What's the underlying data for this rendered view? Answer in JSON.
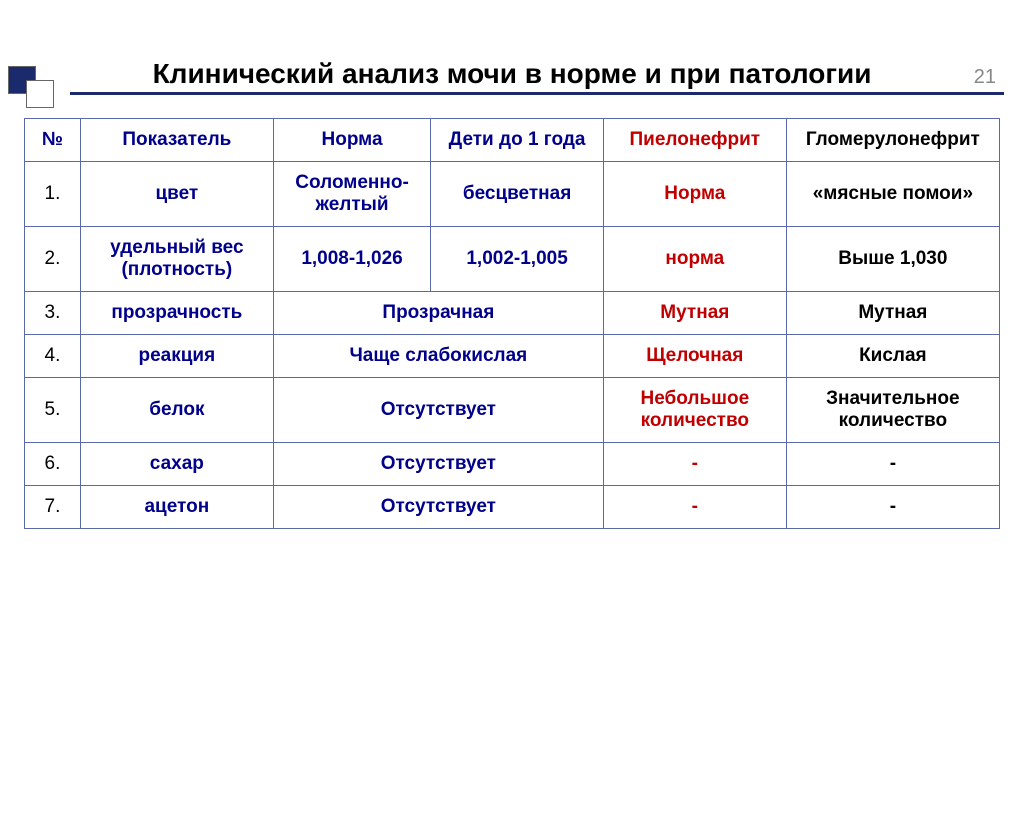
{
  "page_number": "21",
  "title": "Клинический анализ мочи в норме и при патологии",
  "colors": {
    "accent_navy": "#00008b",
    "accent_red": "#c00000",
    "border": "#5a6aa8",
    "text_black": "#000000",
    "text_gray": "#888888",
    "divider": "#1a2a6c",
    "background": "#ffffff"
  },
  "table": {
    "columns": [
      {
        "label": "№",
        "style": "navy"
      },
      {
        "label": "Показатель",
        "style": "navy"
      },
      {
        "label": "Норма",
        "style": "navy"
      },
      {
        "label": "Дети до 1 года",
        "style": "navy"
      },
      {
        "label": "Пиелонефрит",
        "style": "red"
      },
      {
        "label": "Гломерулонефрит",
        "style": "black"
      }
    ],
    "rows": [
      {
        "num": "1.",
        "param": "цвет",
        "norm": "Соломенно-желтый",
        "child": "бесцветная",
        "pyelo": "Норма",
        "glom": "«мясные помои»"
      },
      {
        "num": "2.",
        "param": "удельный вес (плотность)",
        "norm": "1,008-1,026",
        "child": "1,002-1,005",
        "pyelo": "норма",
        "glom": "Выше 1,030"
      },
      {
        "num": "3.",
        "param": "прозрачность",
        "norm_merged": "Прозрачная",
        "pyelo": "Мутная",
        "glom": "Мутная"
      },
      {
        "num": "4.",
        "param": "реакция",
        "norm_merged": "Чаще слабокислая",
        "pyelo": "Щелочная",
        "glom": "Кислая"
      },
      {
        "num": "5.",
        "param": "белок",
        "norm_merged": "Отсутствует",
        "pyelo": "Небольшое количество",
        "glom": "Значительное количество"
      },
      {
        "num": "6.",
        "param": "сахар",
        "norm_merged": "Отсутствует",
        "pyelo": "-",
        "glom": "-"
      },
      {
        "num": "7.",
        "param": "ацетон",
        "norm_merged": "Отсутствует",
        "pyelo": "-",
        "glom": "-"
      }
    ]
  }
}
